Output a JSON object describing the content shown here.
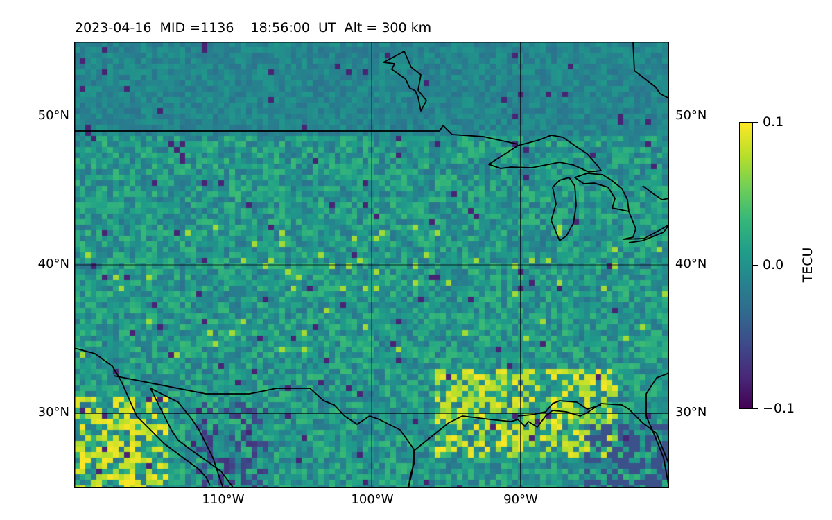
{
  "title": "2023-04-16  MID =1136    18:56:00  UT  Alt = 300 km",
  "map": {
    "projection": "lat-lon",
    "lon_range": [
      -120,
      -80
    ],
    "lat_range": [
      25,
      55
    ],
    "gridlines": true,
    "lat_ticks": [
      {
        "value": 50,
        "label": "50°N"
      },
      {
        "value": 40,
        "label": "40°N"
      },
      {
        "value": 30,
        "label": "30°N"
      }
    ],
    "lon_ticks": [
      {
        "value": -110,
        "label": "110°W"
      },
      {
        "value": -100,
        "label": "100°W"
      },
      {
        "value": -90,
        "label": "90°W"
      }
    ],
    "features": [
      "coastlines",
      "us-canada-border",
      "us-mexico-border",
      "great-lakes"
    ],
    "coastline_color": "#000000"
  },
  "colorbar": {
    "label": "TECU",
    "vmin": -0.1,
    "vmax": 0.1,
    "colormap": "viridis",
    "ticks": [
      {
        "value": 0.1,
        "label": "0.1"
      },
      {
        "value": 0.0,
        "label": "0.0"
      },
      {
        "value": -0.1,
        "label": "−0.1"
      }
    ]
  },
  "chart_data": {
    "type": "heatmap",
    "title": "2023-04-16  MID =1136    18:56:00  UT  Alt = 300 km",
    "xlabel": "",
    "ylabel": "",
    "xlim": [
      -120,
      -80
    ],
    "ylim": [
      25,
      55
    ],
    "colorbar_label": "TECU",
    "zlim": [
      -0.1,
      0.1
    ],
    "grid": true
  }
}
